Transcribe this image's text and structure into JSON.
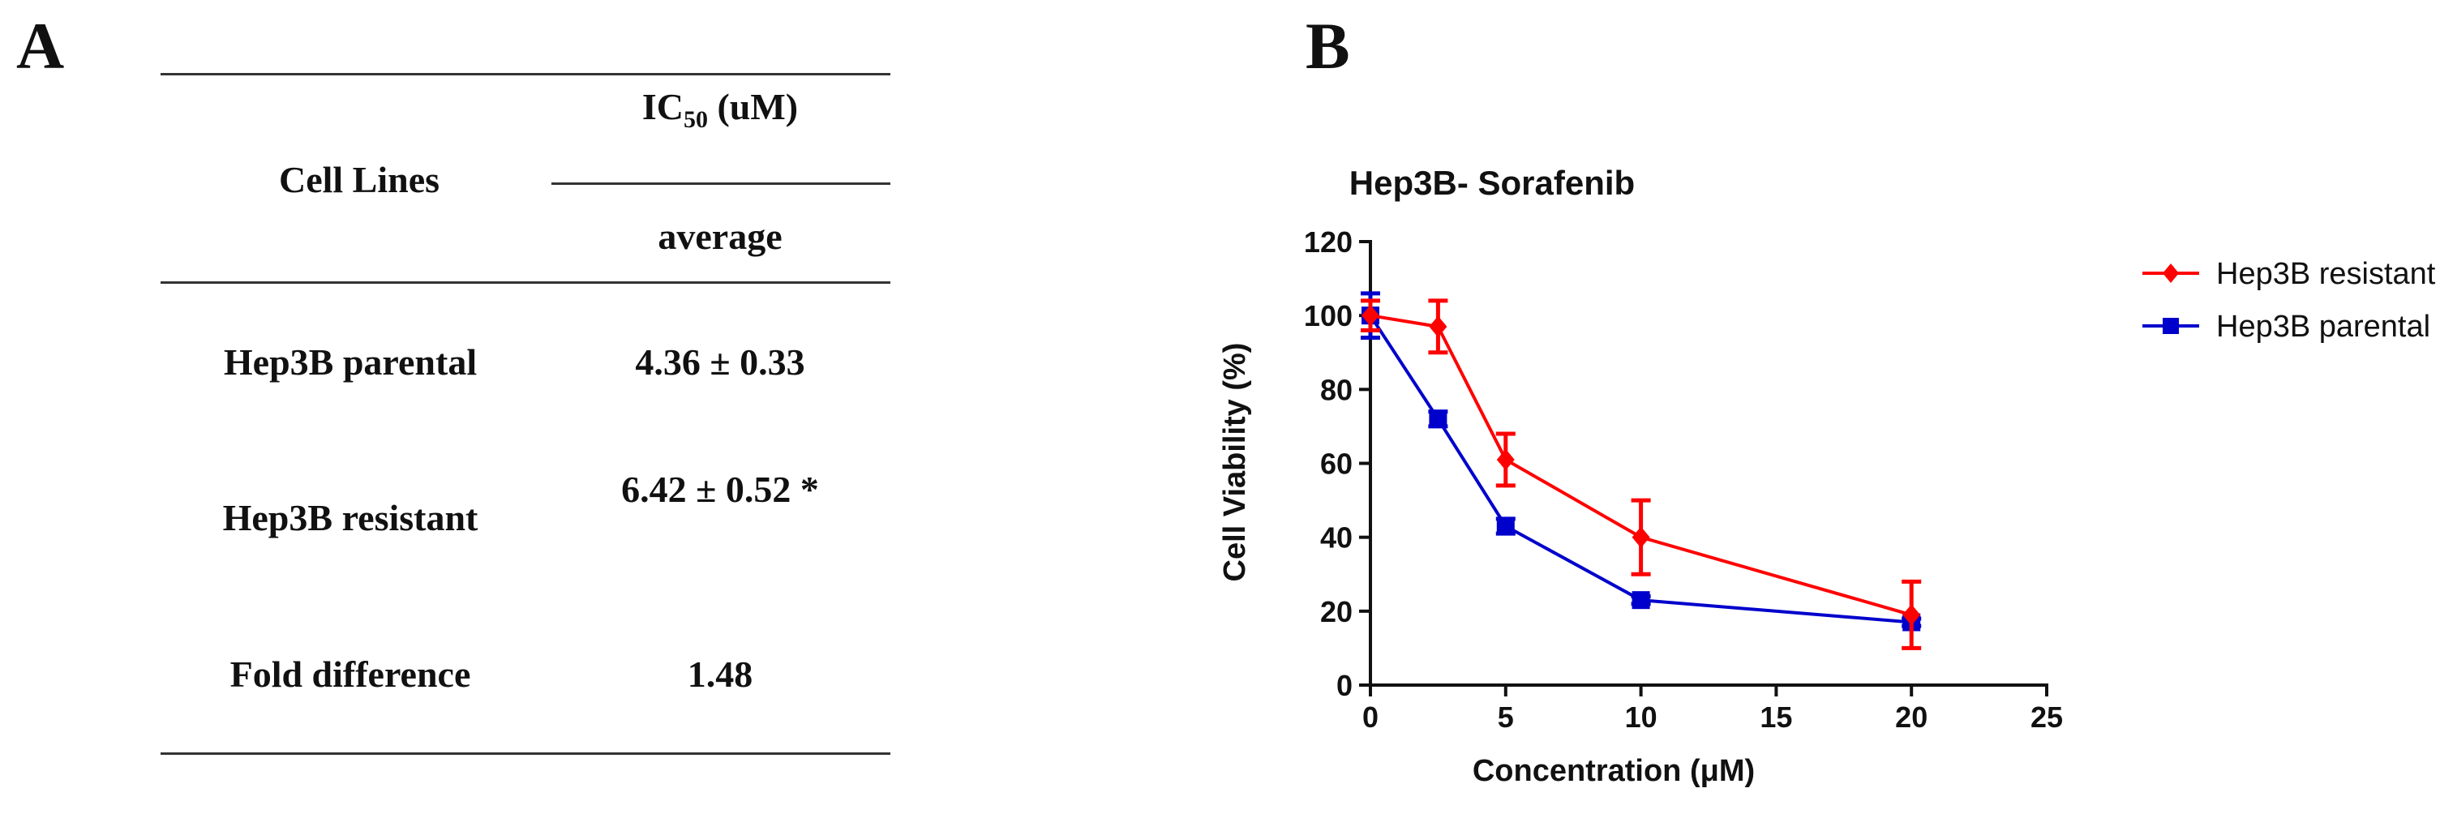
{
  "panel_a": {
    "label": "A",
    "header": {
      "cell_lines": "Cell Lines",
      "ic50_prefix": "IC",
      "ic50_sub": "50",
      "ic50_suffix": " (uM)",
      "average": "average"
    },
    "rows": [
      {
        "name": "Hep3B parental",
        "value": "4.36 ± 0.33"
      },
      {
        "name": "Hep3B resistant",
        "value": "6.42 ± 0.52 *"
      },
      {
        "name": "Fold difference",
        "value": "1.48"
      }
    ]
  },
  "panel_b": {
    "label": "B"
  },
  "chart_data": {
    "type": "line",
    "title": "Hep3B- Sorafenib",
    "xlabel": "Concentration (μM)",
    "ylabel": "Cell Viability (%)",
    "xlim": [
      0,
      25
    ],
    "ylim": [
      0,
      120
    ],
    "xticks": [
      0,
      5,
      10,
      15,
      20,
      25
    ],
    "yticks": [
      0,
      20,
      40,
      60,
      80,
      100,
      120
    ],
    "legend_position": "top-right",
    "series": [
      {
        "name": "Hep3B resistant",
        "color": "#ff0000",
        "marker": "diamond",
        "x": [
          0,
          2.5,
          5,
          10,
          20
        ],
        "y": [
          100,
          97,
          61,
          40,
          19
        ],
        "err": [
          4,
          7,
          7,
          10,
          9
        ]
      },
      {
        "name": "Hep3B parental",
        "color": "#0000cc",
        "marker": "square",
        "x": [
          0,
          2.5,
          5,
          10,
          20
        ],
        "y": [
          100,
          72,
          43,
          23,
          17
        ],
        "err": [
          6,
          2,
          2,
          1,
          1
        ]
      }
    ]
  }
}
